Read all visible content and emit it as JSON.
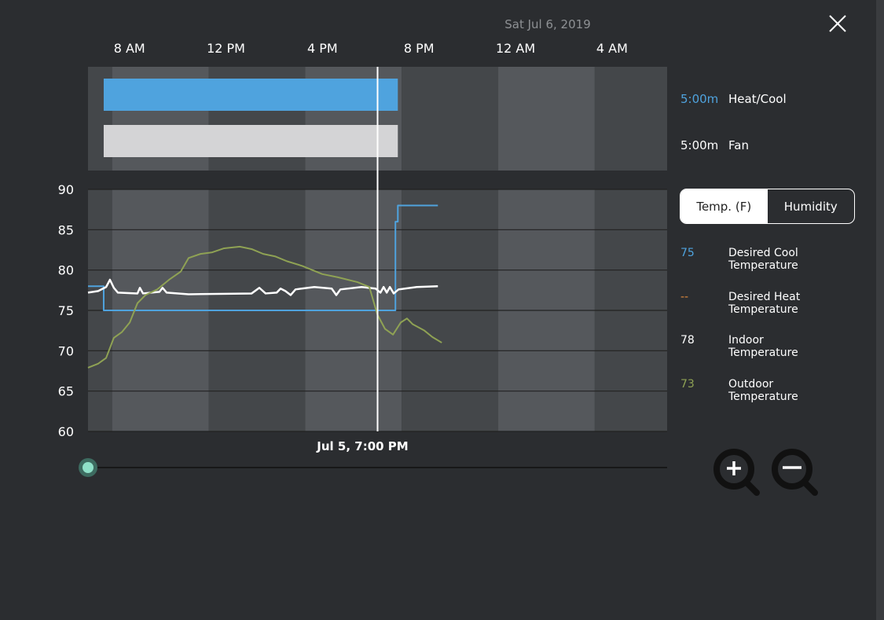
{
  "header": {
    "date": "Sat Jul 6, 2019"
  },
  "runtime": [
    {
      "duration": "5:00m",
      "label": "Heat/Cool",
      "color": "#4fa3de",
      "start": 7.65,
      "end": 19.84
    },
    {
      "duration": "5:00m",
      "label": "Fan",
      "color": "#d4d4d6",
      "start": 7.65,
      "end": 19.84
    }
  ],
  "toggle": {
    "options": [
      "Temp. (F)",
      "Humidity"
    ],
    "selected": 0
  },
  "chart_data": {
    "type": "line",
    "xlim": [
      7,
      31
    ],
    "xticks": [
      {
        "value": 8,
        "label": "8 AM"
      },
      {
        "value": 12,
        "label": "12 PM"
      },
      {
        "value": 16,
        "label": "4 PM"
      },
      {
        "value": 20,
        "label": "8 PM"
      },
      {
        "value": 24,
        "label": "12 AM"
      },
      {
        "value": 28,
        "label": "4 AM"
      }
    ],
    "ylim": [
      60,
      90
    ],
    "yticks": [
      60,
      65,
      70,
      75,
      80,
      85,
      90
    ],
    "grid": true,
    "cursor": {
      "x": 19,
      "label": "Jul 5, 7:00 PM"
    },
    "series": [
      {
        "name": "Desired Cool Temperature",
        "color": "#4fa3de",
        "reading": "75",
        "x": [
          7,
          7.65,
          7.65,
          19.74,
          19.74,
          19.84,
          19.84,
          21.5
        ],
        "values": [
          78,
          78,
          75,
          75,
          86,
          86,
          88,
          88
        ]
      },
      {
        "name": "Desired Heat Temperature",
        "color": "#e08a3c",
        "reading": "--",
        "x": [],
        "values": []
      },
      {
        "name": "Indoor Temperature",
        "color": "#ffffff",
        "reading": "78",
        "x": [
          7,
          7.42,
          7.75,
          7.91,
          8.07,
          8.24,
          9.05,
          9.15,
          9.28,
          9.96,
          10.09,
          10.26,
          11.17,
          13.78,
          14.1,
          14.36,
          14.82,
          14.98,
          15.18,
          15.4,
          15.6,
          16.38,
          17.1,
          17.29,
          17.46,
          18.34,
          18.92,
          19.12,
          19.25,
          19.38,
          19.51,
          19.67,
          19.87,
          20.62,
          21.5
        ],
        "values": [
          77.2,
          77.4,
          77.9,
          78.8,
          77.8,
          77.2,
          77.1,
          77.8,
          77.1,
          77.3,
          77.8,
          77.2,
          77,
          77.1,
          77.8,
          77.1,
          77.2,
          77.7,
          77.4,
          76.9,
          77.6,
          77.9,
          77.7,
          76.9,
          77.6,
          77.9,
          77.7,
          77.2,
          77.9,
          77.2,
          77.9,
          77.1,
          77.6,
          77.9,
          78
        ]
      },
      {
        "name": "Outdoor Temperature",
        "color": "#8fa254",
        "reading": "73",
        "x": [
          7,
          7.42,
          7.75,
          8.07,
          8.4,
          8.73,
          9.05,
          9.38,
          9.87,
          10.36,
          10.84,
          11.17,
          11.66,
          12.15,
          12.64,
          13.29,
          13.78,
          14.26,
          14.75,
          15.24,
          15.89,
          16.71,
          17.36,
          18.17,
          18.66,
          18.99,
          19.31,
          19.64,
          19.96,
          20.22,
          20.45,
          20.94,
          21.27,
          21.66
        ],
        "values": [
          67.9,
          68.4,
          69.1,
          71.6,
          72.3,
          73.5,
          75.9,
          76.9,
          77.6,
          78.8,
          79.8,
          81.5,
          82,
          82.2,
          82.7,
          82.9,
          82.6,
          82,
          81.7,
          81.1,
          80.5,
          79.5,
          79.1,
          78.5,
          77.9,
          74.5,
          72.7,
          72,
          73.5,
          74,
          73.3,
          72.5,
          71.7,
          71
        ]
      }
    ]
  }
}
